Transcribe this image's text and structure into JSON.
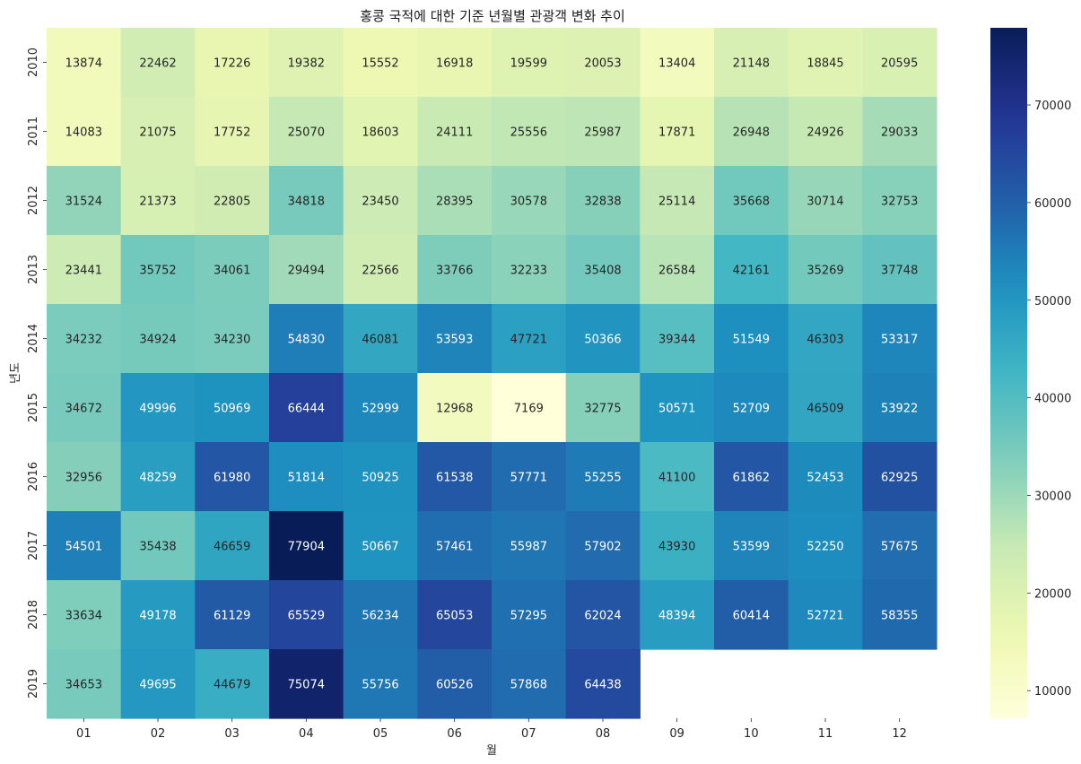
{
  "chart_data": {
    "type": "heatmap",
    "title": "홍콩 국적에 대한 기준 년월별 관광객 변화 추이",
    "xlabel": "월",
    "ylabel": "년도",
    "x_categories": [
      "01",
      "02",
      "03",
      "04",
      "05",
      "06",
      "07",
      "08",
      "09",
      "10",
      "11",
      "12"
    ],
    "y_categories": [
      "2010",
      "2011",
      "2012",
      "2013",
      "2014",
      "2015",
      "2016",
      "2017",
      "2018",
      "2019"
    ],
    "values": [
      [
        13874,
        22462,
        17226,
        19382,
        15552,
        16918,
        19599,
        20053,
        13404,
        21148,
        18845,
        20595
      ],
      [
        14083,
        21075,
        17752,
        25070,
        18603,
        24111,
        25556,
        25987,
        17871,
        26948,
        24926,
        29033
      ],
      [
        31524,
        21373,
        22805,
        34818,
        23450,
        28395,
        30578,
        32838,
        25114,
        35668,
        30714,
        32753
      ],
      [
        23441,
        35752,
        34061,
        29494,
        22566,
        33766,
        32233,
        35408,
        26584,
        42161,
        35269,
        37748
      ],
      [
        34232,
        34924,
        34230,
        54830,
        46081,
        53593,
        47721,
        50366,
        39344,
        51549,
        46303,
        53317
      ],
      [
        34672,
        49996,
        50969,
        66444,
        52999,
        12968,
        7169,
        32775,
        50571,
        52709,
        46509,
        53922
      ],
      [
        32956,
        48259,
        61980,
        51814,
        50925,
        61538,
        57771,
        55255,
        41100,
        61862,
        52453,
        62925
      ],
      [
        54501,
        35438,
        46659,
        77904,
        50667,
        57461,
        55987,
        57902,
        43930,
        53599,
        52250,
        57675
      ],
      [
        33634,
        49178,
        61129,
        65529,
        56234,
        65053,
        57295,
        62024,
        48394,
        60414,
        52721,
        58355
      ],
      [
        34653,
        49695,
        44679,
        75074,
        55756,
        60526,
        57868,
        64438,
        null,
        null,
        null,
        null
      ]
    ],
    "colormap": "YlGnBu",
    "vmin": 7169,
    "vmax": 77904,
    "colorbar_ticks": [
      10000,
      20000,
      30000,
      40000,
      50000,
      60000,
      70000
    ],
    "colorbar_tick_labels": [
      "10000",
      "20000",
      "30000",
      "40000",
      "50000",
      "60000",
      "70000"
    ],
    "grid": false,
    "legend": "colorbar-right"
  }
}
